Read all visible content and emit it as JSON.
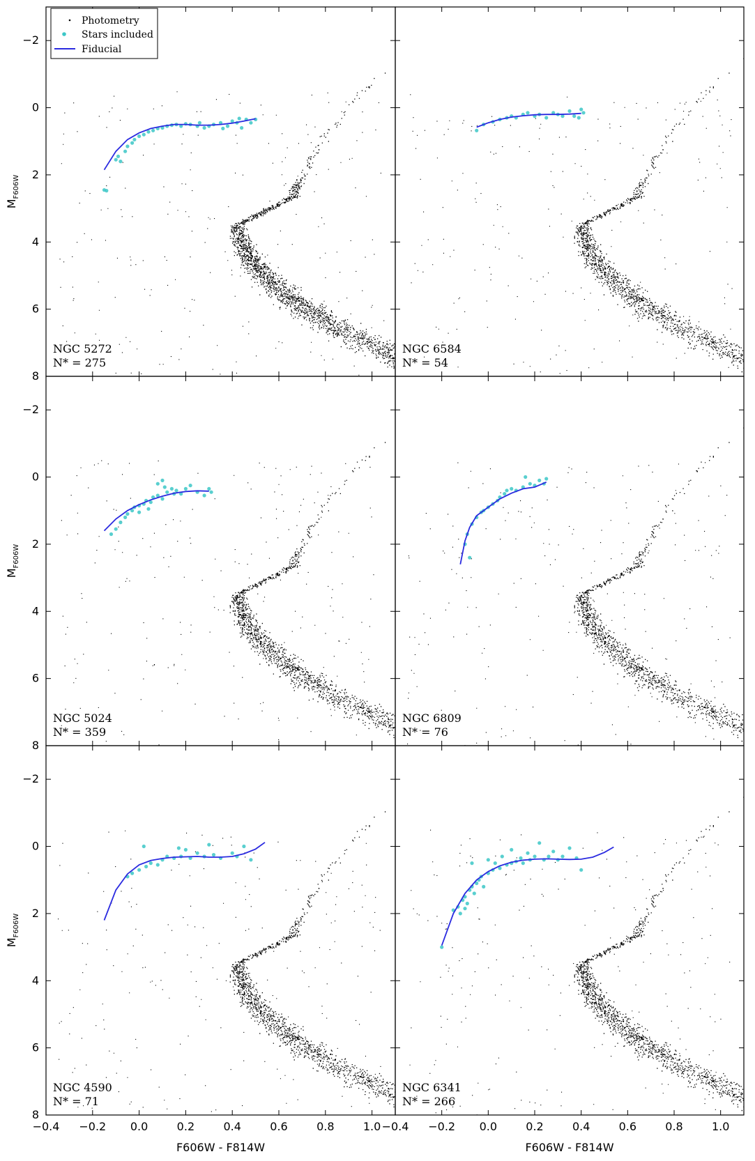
{
  "chart_data": {
    "type": "scatter",
    "xlabel": "F606W - F814W",
    "ylabel_main": "M",
    "ylabel_sub": "F606W",
    "xlim": [
      -0.4,
      1.1
    ],
    "ylim": [
      8,
      -3
    ],
    "y_inverted": true,
    "x_ticks": [
      "−0.4",
      "−0.2",
      "0.0",
      "0.2",
      "0.4",
      "0.6",
      "0.8",
      "1.0"
    ],
    "x_tick_values": [
      -0.4,
      -0.2,
      0.0,
      0.2,
      0.4,
      0.6,
      0.8,
      1.0
    ],
    "y_ticks": [
      "−2",
      "0",
      "2",
      "4",
      "6",
      "8"
    ],
    "y_tick_values": [
      -2,
      0,
      2,
      4,
      6,
      8
    ],
    "legend": {
      "placement": "upper-left of first panel",
      "entries": [
        "Photometry",
        "Stars included",
        "Fiducial"
      ]
    },
    "colors": {
      "photometry": "#000000",
      "stars_included": "#3cc7c7",
      "fiducial": "#2a2ae0"
    },
    "panels": [
      {
        "cluster": "NGC 5272",
        "n_label": "N* = 275",
        "fiducial": [
          [
            -0.15,
            1.85
          ],
          [
            -0.1,
            1.3
          ],
          [
            -0.05,
            0.95
          ],
          [
            0.0,
            0.75
          ],
          [
            0.05,
            0.62
          ],
          [
            0.1,
            0.55
          ],
          [
            0.15,
            0.5
          ],
          [
            0.2,
            0.5
          ],
          [
            0.25,
            0.52
          ],
          [
            0.3,
            0.52
          ],
          [
            0.35,
            0.5
          ],
          [
            0.4,
            0.46
          ],
          [
            0.45,
            0.4
          ],
          [
            0.5,
            0.33
          ]
        ],
        "stars": [
          [
            -0.15,
            2.45
          ],
          [
            -0.14,
            2.47
          ],
          [
            -0.1,
            1.55
          ],
          [
            -0.08,
            1.6
          ],
          [
            -0.09,
            1.45
          ],
          [
            -0.06,
            1.3
          ],
          [
            -0.05,
            1.15
          ],
          [
            -0.03,
            1.05
          ],
          [
            -0.02,
            0.95
          ],
          [
            0.0,
            0.85
          ],
          [
            0.02,
            0.8
          ],
          [
            0.04,
            0.72
          ],
          [
            0.06,
            0.68
          ],
          [
            0.08,
            0.62
          ],
          [
            0.1,
            0.6
          ],
          [
            0.12,
            0.55
          ],
          [
            0.14,
            0.52
          ],
          [
            0.16,
            0.5
          ],
          [
            0.18,
            0.55
          ],
          [
            0.2,
            0.48
          ],
          [
            0.22,
            0.5
          ],
          [
            0.25,
            0.55
          ],
          [
            0.28,
            0.6
          ],
          [
            0.3,
            0.55
          ],
          [
            0.32,
            0.5
          ],
          [
            0.35,
            0.45
          ],
          [
            0.38,
            0.55
          ],
          [
            0.4,
            0.4
          ],
          [
            0.42,
            0.45
          ],
          [
            0.44,
            0.6
          ],
          [
            0.46,
            0.35
          ],
          [
            0.48,
            0.45
          ],
          [
            0.5,
            0.35
          ],
          [
            0.36,
            0.62
          ],
          [
            0.26,
            0.45
          ],
          [
            0.43,
            0.32
          ]
        ]
      },
      {
        "cluster": "NGC 6584",
        "n_label": "N* = 54",
        "fiducial": [
          [
            -0.05,
            0.58
          ],
          [
            0.0,
            0.45
          ],
          [
            0.05,
            0.35
          ],
          [
            0.1,
            0.28
          ],
          [
            0.15,
            0.24
          ],
          [
            0.2,
            0.21
          ],
          [
            0.25,
            0.2
          ],
          [
            0.3,
            0.2
          ],
          [
            0.35,
            0.19
          ],
          [
            0.4,
            0.17
          ]
        ],
        "stars": [
          [
            -0.05,
            0.68
          ],
          [
            -0.02,
            0.5
          ],
          [
            0.02,
            0.42
          ],
          [
            0.05,
            0.35
          ],
          [
            0.08,
            0.3
          ],
          [
            0.1,
            0.25
          ],
          [
            0.12,
            0.3
          ],
          [
            0.15,
            0.2
          ],
          [
            0.17,
            0.15
          ],
          [
            0.2,
            0.25
          ],
          [
            0.22,
            0.2
          ],
          [
            0.25,
            0.3
          ],
          [
            0.28,
            0.15
          ],
          [
            0.3,
            0.2
          ],
          [
            0.32,
            0.25
          ],
          [
            0.35,
            0.1
          ],
          [
            0.37,
            0.25
          ],
          [
            0.4,
            0.05
          ],
          [
            0.41,
            0.15
          ],
          [
            0.39,
            0.3
          ]
        ]
      },
      {
        "cluster": "NGC 5024",
        "n_label": "N* = 359",
        "fiducial": [
          [
            -0.15,
            1.6
          ],
          [
            -0.1,
            1.25
          ],
          [
            -0.05,
            1.0
          ],
          [
            0.0,
            0.82
          ],
          [
            0.05,
            0.68
          ],
          [
            0.1,
            0.57
          ],
          [
            0.15,
            0.48
          ],
          [
            0.2,
            0.43
          ],
          [
            0.25,
            0.41
          ],
          [
            0.3,
            0.42
          ]
        ],
        "stars": [
          [
            -0.12,
            1.7
          ],
          [
            -0.1,
            1.55
          ],
          [
            -0.08,
            1.35
          ],
          [
            -0.06,
            1.2
          ],
          [
            -0.05,
            1.1
          ],
          [
            -0.03,
            1.0
          ],
          [
            -0.02,
            0.9
          ],
          [
            0.0,
            0.85
          ],
          [
            0.02,
            0.8
          ],
          [
            0.03,
            0.7
          ],
          [
            0.05,
            0.75
          ],
          [
            0.06,
            0.6
          ],
          [
            0.08,
            0.55
          ],
          [
            0.08,
            0.2
          ],
          [
            0.1,
            0.1
          ],
          [
            0.11,
            0.3
          ],
          [
            0.12,
            0.45
          ],
          [
            0.14,
            0.35
          ],
          [
            0.15,
            0.5
          ],
          [
            0.16,
            0.4
          ],
          [
            0.18,
            0.5
          ],
          [
            0.2,
            0.35
          ],
          [
            0.22,
            0.25
          ],
          [
            0.25,
            0.45
          ],
          [
            0.28,
            0.55
          ],
          [
            0.3,
            0.35
          ],
          [
            0.31,
            0.45
          ],
          [
            0.04,
            0.95
          ],
          [
            0.1,
            0.65
          ],
          [
            0.0,
            1.05
          ]
        ]
      },
      {
        "cluster": "NGC 6809",
        "n_label": "N* = 76",
        "fiducial": [
          [
            -0.12,
            2.6
          ],
          [
            -0.1,
            1.9
          ],
          [
            -0.08,
            1.5
          ],
          [
            -0.05,
            1.15
          ],
          [
            0.0,
            0.9
          ],
          [
            0.05,
            0.65
          ],
          [
            0.1,
            0.48
          ],
          [
            0.15,
            0.35
          ],
          [
            0.2,
            0.3
          ],
          [
            0.25,
            0.15
          ]
        ],
        "stars": [
          [
            -0.08,
            2.4
          ],
          [
            -0.1,
            2.0
          ],
          [
            -0.09,
            1.7
          ],
          [
            -0.07,
            1.4
          ],
          [
            -0.05,
            1.2
          ],
          [
            -0.03,
            1.05
          ],
          [
            -0.02,
            1.0
          ],
          [
            0.0,
            0.9
          ],
          [
            0.02,
            0.8
          ],
          [
            0.04,
            0.7
          ],
          [
            0.05,
            0.6
          ],
          [
            0.07,
            0.5
          ],
          [
            0.08,
            0.4
          ],
          [
            0.1,
            0.35
          ],
          [
            0.12,
            0.4
          ],
          [
            0.15,
            0.3
          ],
          [
            0.16,
            0.0
          ],
          [
            0.18,
            0.2
          ],
          [
            0.2,
            0.25
          ],
          [
            0.22,
            0.1
          ],
          [
            0.24,
            0.2
          ],
          [
            0.25,
            0.05
          ]
        ]
      },
      {
        "cluster": "NGC 4590",
        "n_label": "N* = 71",
        "fiducial": [
          [
            -0.15,
            2.2
          ],
          [
            -0.1,
            1.3
          ],
          [
            -0.05,
            0.82
          ],
          [
            0.0,
            0.55
          ],
          [
            0.05,
            0.42
          ],
          [
            0.1,
            0.36
          ],
          [
            0.15,
            0.32
          ],
          [
            0.2,
            0.31
          ],
          [
            0.25,
            0.3
          ],
          [
            0.3,
            0.32
          ],
          [
            0.35,
            0.32
          ],
          [
            0.4,
            0.3
          ],
          [
            0.45,
            0.22
          ],
          [
            0.5,
            0.08
          ],
          [
            0.54,
            -0.12
          ]
        ],
        "stars": [
          [
            -0.05,
            0.9
          ],
          [
            -0.03,
            0.8
          ],
          [
            0.0,
            0.7
          ],
          [
            0.02,
            0.0
          ],
          [
            0.03,
            0.6
          ],
          [
            0.05,
            0.5
          ],
          [
            0.08,
            0.55
          ],
          [
            0.1,
            0.4
          ],
          [
            0.12,
            0.3
          ],
          [
            0.15,
            0.35
          ],
          [
            0.17,
            0.05
          ],
          [
            0.18,
            0.3
          ],
          [
            0.2,
            0.1
          ],
          [
            0.22,
            0.35
          ],
          [
            0.25,
            0.2
          ],
          [
            0.28,
            0.3
          ],
          [
            0.3,
            -0.05
          ],
          [
            0.32,
            0.25
          ],
          [
            0.35,
            0.35
          ],
          [
            0.4,
            0.2
          ],
          [
            0.42,
            0.3
          ],
          [
            0.45,
            0.0
          ],
          [
            0.48,
            0.4
          ]
        ]
      },
      {
        "cluster": "NGC 6341",
        "n_label": "N* = 266",
        "fiducial": [
          [
            -0.2,
            2.95
          ],
          [
            -0.15,
            2.0
          ],
          [
            -0.1,
            1.4
          ],
          [
            -0.05,
            1.0
          ],
          [
            0.0,
            0.75
          ],
          [
            0.05,
            0.58
          ],
          [
            0.1,
            0.47
          ],
          [
            0.15,
            0.41
          ],
          [
            0.2,
            0.38
          ],
          [
            0.25,
            0.37
          ],
          [
            0.3,
            0.38
          ],
          [
            0.35,
            0.39
          ],
          [
            0.4,
            0.38
          ],
          [
            0.45,
            0.32
          ],
          [
            0.5,
            0.18
          ],
          [
            0.54,
            0.02
          ]
        ],
        "stars": [
          [
            -0.2,
            3.0
          ],
          [
            -0.15,
            1.9
          ],
          [
            -0.13,
            1.8
          ],
          [
            -0.12,
            2.0
          ],
          [
            -0.11,
            1.6
          ],
          [
            -0.1,
            1.5
          ],
          [
            -0.09,
            1.7
          ],
          [
            -0.08,
            1.3
          ],
          [
            -0.07,
            1.2
          ],
          [
            -0.06,
            1.4
          ],
          [
            -0.05,
            1.1
          ],
          [
            -0.04,
            1.0
          ],
          [
            -0.03,
            0.9
          ],
          [
            -0.02,
            1.2
          ],
          [
            0.0,
            0.8
          ],
          [
            0.0,
            0.4
          ],
          [
            0.02,
            0.7
          ],
          [
            0.03,
            0.5
          ],
          [
            0.05,
            0.65
          ],
          [
            0.06,
            0.3
          ],
          [
            0.08,
            0.55
          ],
          [
            0.1,
            0.5
          ],
          [
            0.12,
            0.45
          ],
          [
            0.14,
            0.35
          ],
          [
            0.15,
            0.5
          ],
          [
            0.17,
            0.2
          ],
          [
            0.18,
            0.4
          ],
          [
            0.2,
            0.3
          ],
          [
            0.22,
            -0.1
          ],
          [
            0.24,
            0.4
          ],
          [
            0.26,
            0.3
          ],
          [
            0.28,
            0.15
          ],
          [
            0.3,
            0.4
          ],
          [
            0.32,
            0.3
          ],
          [
            0.35,
            0.05
          ],
          [
            0.38,
            0.35
          ],
          [
            0.4,
            0.7
          ],
          [
            -0.07,
            0.5
          ],
          [
            0.1,
            0.1
          ],
          [
            -0.1,
            1.85
          ]
        ]
      }
    ]
  }
}
